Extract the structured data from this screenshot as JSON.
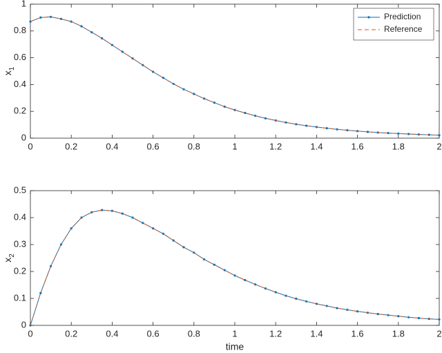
{
  "chart_data": [
    {
      "type": "line",
      "ylabel": "x",
      "ylabel_sub": "1",
      "legend": "upper right",
      "x": [
        0,
        0.05,
        0.1,
        0.15,
        0.2,
        0.25,
        0.3,
        0.35,
        0.4,
        0.45,
        0.5,
        0.55,
        0.6,
        0.65,
        0.7,
        0.75,
        0.8,
        0.85,
        0.9,
        0.95,
        1,
        1.05,
        1.1,
        1.15,
        1.2,
        1.25,
        1.3,
        1.35,
        1.4,
        1.45,
        1.5,
        1.55,
        1.6,
        1.65,
        1.7,
        1.75,
        1.8,
        1.85,
        1.9,
        1.95,
        2
      ],
      "xlim": [
        0,
        2
      ],
      "xticks": [
        0,
        0.2,
        0.4,
        0.6,
        0.8,
        1,
        1.2,
        1.4,
        1.6,
        1.8,
        2
      ],
      "ylim": [
        0,
        1
      ],
      "yticks": [
        0,
        0.2,
        0.4,
        0.6,
        0.8,
        1
      ],
      "series": [
        {
          "name": "Prediction",
          "color": "#0072bd",
          "style": "solid-dots",
          "values": [
            0.87,
            0.9,
            0.905,
            0.89,
            0.87,
            0.835,
            0.79,
            0.745,
            0.695,
            0.645,
            0.595,
            0.545,
            0.495,
            0.45,
            0.405,
            0.365,
            0.33,
            0.295,
            0.265,
            0.235,
            0.21,
            0.188,
            0.167,
            0.148,
            0.132,
            0.117,
            0.104,
            0.093,
            0.083,
            0.074,
            0.066,
            0.059,
            0.053,
            0.047,
            0.042,
            0.038,
            0.034,
            0.031,
            0.028,
            0.025,
            0.022
          ]
        },
        {
          "name": "Reference",
          "color": "#d95319",
          "style": "dashed",
          "values": [
            0.87,
            0.9,
            0.905,
            0.89,
            0.87,
            0.835,
            0.79,
            0.745,
            0.695,
            0.645,
            0.595,
            0.545,
            0.495,
            0.45,
            0.405,
            0.365,
            0.33,
            0.295,
            0.265,
            0.235,
            0.21,
            0.188,
            0.167,
            0.148,
            0.132,
            0.117,
            0.104,
            0.093,
            0.083,
            0.074,
            0.066,
            0.059,
            0.053,
            0.047,
            0.042,
            0.038,
            0.034,
            0.031,
            0.028,
            0.025,
            0.022
          ]
        }
      ]
    },
    {
      "type": "line",
      "ylabel": "x",
      "ylabel_sub": "2",
      "xlabel": "time",
      "x": [
        0,
        0.05,
        0.1,
        0.15,
        0.2,
        0.25,
        0.3,
        0.35,
        0.4,
        0.45,
        0.5,
        0.55,
        0.6,
        0.65,
        0.7,
        0.75,
        0.8,
        0.85,
        0.9,
        0.95,
        1,
        1.05,
        1.1,
        1.15,
        1.2,
        1.25,
        1.3,
        1.35,
        1.4,
        1.45,
        1.5,
        1.55,
        1.6,
        1.65,
        1.7,
        1.75,
        1.8,
        1.85,
        1.9,
        1.95,
        2
      ],
      "xlim": [
        0,
        2
      ],
      "xticks": [
        0,
        0.2,
        0.4,
        0.6,
        0.8,
        1,
        1.2,
        1.4,
        1.6,
        1.8,
        2
      ],
      "ylim": [
        0,
        0.5
      ],
      "yticks": [
        0,
        0.1,
        0.2,
        0.3,
        0.4,
        0.5
      ],
      "series": [
        {
          "color": "#0072bd",
          "style": "solid-dots",
          "values": [
            0,
            0.12,
            0.22,
            0.3,
            0.36,
            0.4,
            0.42,
            0.428,
            0.425,
            0.415,
            0.4,
            0.38,
            0.36,
            0.34,
            0.315,
            0.29,
            0.27,
            0.245,
            0.225,
            0.205,
            0.185,
            0.168,
            0.152,
            0.137,
            0.123,
            0.11,
            0.099,
            0.089,
            0.08,
            0.072,
            0.064,
            0.058,
            0.052,
            0.047,
            0.042,
            0.038,
            0.034,
            0.03,
            0.027,
            0.024,
            0.022
          ]
        },
        {
          "color": "#d95319",
          "style": "dashed",
          "values": [
            0,
            0.12,
            0.22,
            0.3,
            0.36,
            0.4,
            0.42,
            0.428,
            0.425,
            0.415,
            0.4,
            0.38,
            0.36,
            0.34,
            0.315,
            0.29,
            0.27,
            0.245,
            0.225,
            0.205,
            0.185,
            0.168,
            0.152,
            0.137,
            0.123,
            0.11,
            0.099,
            0.089,
            0.08,
            0.072,
            0.064,
            0.058,
            0.052,
            0.047,
            0.042,
            0.038,
            0.034,
            0.03,
            0.027,
            0.024,
            0.022
          ]
        }
      ]
    }
  ]
}
